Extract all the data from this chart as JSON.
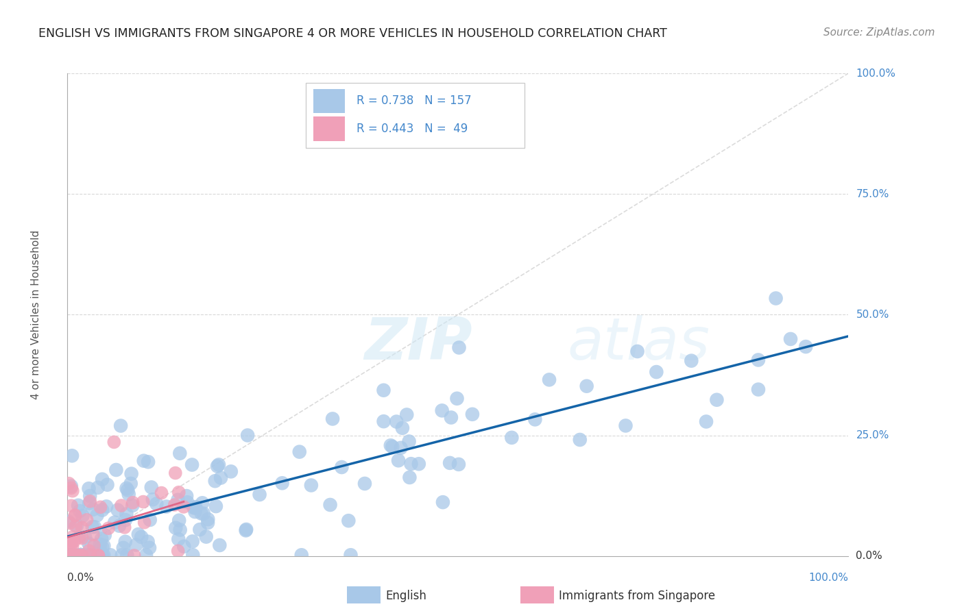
{
  "title": "ENGLISH VS IMMIGRANTS FROM SINGAPORE 4 OR MORE VEHICLES IN HOUSEHOLD CORRELATION CHART",
  "source": "Source: ZipAtlas.com",
  "ylabel": "4 or more Vehicles in Household",
  "r_english": 0.738,
  "n_english": 157,
  "r_immigrants": 0.443,
  "n_immigrants": 49,
  "english_color": "#a8c8e8",
  "english_line_color": "#1464a8",
  "immigrants_color": "#f0a0b8",
  "immigrants_line_color": "#e06888",
  "diagonal_color": "#cccccc",
  "grid_color": "#d8d8d8",
  "axis_color": "#aaaaaa",
  "ytick_color": "#4488cc",
  "background_color": "#ffffff",
  "title_color": "#222222",
  "source_color": "#888888",
  "ylabel_color": "#555555"
}
